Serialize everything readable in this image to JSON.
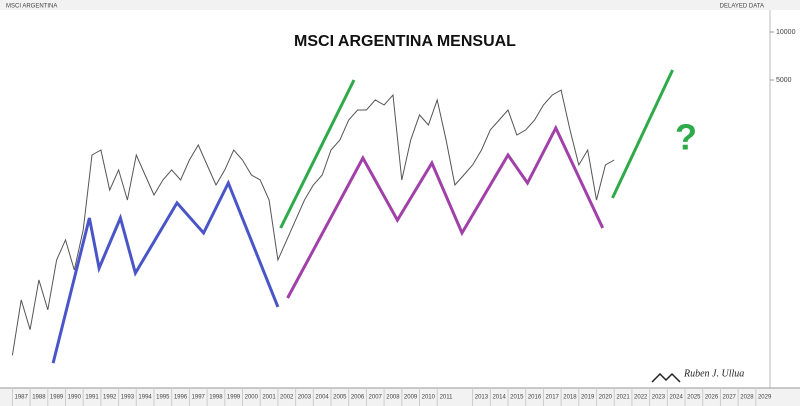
{
  "chart_data": {
    "type": "line",
    "title": "MSCI ARGENTINA MENSUAL",
    "header": "MSCI ARGENTINA",
    "status": "DELAYED DATA",
    "annotation": "?",
    "annotation_color": "#2eaa4a",
    "watermark": "Ruben J. Ullua",
    "log_scale": true,
    "xlim": [
      1986.3,
      2029.8
    ],
    "ylim": [
      58.6,
      13740
    ],
    "yticks": [
      10000,
      5000
    ],
    "xticks": [
      1987,
      1988,
      1989,
      1990,
      1991,
      1992,
      1993,
      1994,
      1995,
      1996,
      1997,
      1998,
      1999,
      2000,
      2001,
      2002,
      2003,
      2004,
      2005,
      2006,
      2007,
      2008,
      2009,
      2010,
      2011,
      2013,
      2014,
      2015,
      2016,
      2017,
      2018,
      2019,
      2020,
      2021,
      2022,
      2023,
      2024,
      2025,
      2026,
      2027,
      2028,
      2029
    ],
    "series": [
      {
        "color": "#555555",
        "width": 1,
        "x": [
          1987.0,
          1987.5,
          1988.0,
          1988.5,
          1989.0,
          1989.5,
          1990.0,
          1990.5,
          1991.0,
          1991.5,
          1992.0,
          1992.5,
          1993.0,
          1993.5,
          1994.0,
          1994.5,
          1995.0,
          1995.5,
          1996.0,
          1996.5,
          1997.0,
          1997.5,
          1998.0,
          1998.5,
          1999.0,
          1999.5,
          2000.0,
          2000.5,
          2001.0,
          2001.5,
          2002.0,
          2002.5,
          2003.0,
          2003.5,
          2004.0,
          2004.5,
          2005.0,
          2005.5,
          2006.0,
          2006.5,
          2007.0,
          2007.5,
          2008.0,
          2008.5,
          2009.0,
          2009.5,
          2010.0,
          2010.5,
          2011.0,
          2011.5,
          2012.0,
          2012.5,
          2013.0,
          2013.5,
          2014.0,
          2014.5,
          2015.0,
          2015.5,
          2016.0,
          2016.5,
          2017.0,
          2017.5,
          2018.0,
          2018.5,
          2019.0,
          2019.5,
          2020.0,
          2020.5,
          2021.0
        ],
        "values": [
          94,
          209,
          136,
          279,
          181,
          372,
          497,
          322,
          574,
          1694,
          1820,
          1021,
          1365,
          885,
          1694,
          1268,
          950,
          1180,
          1365,
          1180,
          1575,
          1958,
          1466,
          1099,
          1365,
          1820,
          1575,
          1268,
          1180,
          885,
          372,
          497,
          662,
          885,
          1099,
          1268,
          1820,
          2104,
          2806,
          3243,
          3243,
          3750,
          3486,
          4027,
          1180,
          2104,
          3020,
          2612,
          3750,
          2104,
          1099,
          1268,
          1466,
          1820,
          2432,
          2806,
          3243,
          2259,
          2432,
          2806,
          3486,
          4027,
          4325,
          2432,
          1466,
          1820,
          885,
          1466,
          1575
        ]
      },
      {
        "color": "#4a55c8",
        "width": 3,
        "x": [
          1989.3,
          1991.35,
          1991.9,
          1993.1,
          1993.95,
          1996.3,
          1997.8,
          1999.2,
          2002.0
        ],
        "values": [
          84,
          682,
          331,
          682,
          308,
          848,
          549,
          1130,
          189
        ]
      },
      {
        "color": "#a040a8",
        "width": 3,
        "x": [
          2002.55,
          2006.8,
          2008.75,
          2010.7,
          2012.4,
          2015.0,
          2016.1,
          2017.7,
          2020.35
        ],
        "values": [
          215,
          1622,
          662,
          1510,
          549,
          1694,
          1130,
          2500,
          590
        ]
      },
      {
        "color": "#2eaa4a",
        "width": 3,
        "x": [
          2002.15,
          2006.3
        ],
        "values": [
          590,
          5000
        ]
      },
      {
        "color": "#2eaa4a",
        "width": 3,
        "x": [
          2020.9,
          2024.3
        ],
        "values": [
          910,
          5780
        ]
      }
    ]
  }
}
